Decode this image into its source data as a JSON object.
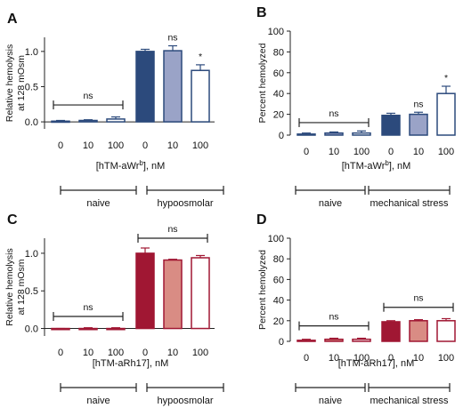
{
  "chart_data": [
    {
      "panel": "A",
      "type": "bar",
      "ylabel": "Relative hemolysis at 128 mOsm",
      "ylabel_lines": [
        "Relative hemolysis",
        "at 128 mOsm"
      ],
      "xlabel": "[hTM-aWr",
      "xlabel_sup": "b",
      "xlabel_tail": "], nM",
      "ylim": [
        -0.1,
        1.2
      ],
      "yticks": [
        0.0,
        0.5,
        1.0
      ],
      "ytick_labels": [
        "0.0",
        "0.5",
        "1.0"
      ],
      "categories": [
        "0",
        "10",
        "100",
        "0",
        "10",
        "100"
      ],
      "values": [
        0.01,
        0.02,
        0.04,
        1.0,
        1.01,
        0.73
      ],
      "errors": [
        0.01,
        0.01,
        0.03,
        0.03,
        0.07,
        0.08
      ],
      "fills": [
        "#2c4a7c",
        "#9aa3c7",
        "#ffffff",
        "#2c4a7c",
        "#9aa3c7",
        "#ffffff"
      ],
      "strokes": [
        "#2c4a7c",
        "#2c4a7c",
        "#2c4a7c",
        "#2c4a7c",
        "#2c4a7c",
        "#2c4a7c"
      ],
      "groups": [
        "naive",
        "hypoosmolar"
      ],
      "annotations": [
        {
          "type": "bracket",
          "from": 0,
          "to": 2,
          "y": 0.24,
          "label": "ns"
        },
        {
          "type": "over",
          "bar": 4,
          "label": "ns"
        },
        {
          "type": "over",
          "bar": 5,
          "label": "*"
        }
      ]
    },
    {
      "panel": "B",
      "type": "bar",
      "ylabel": "Percent hemolyzed",
      "ylabel_lines": [
        "Percent hemolyzed"
      ],
      "xlabel": "[hTM-aWr",
      "xlabel_sup": "b",
      "xlabel_tail": "], nM",
      "ylim": [
        0,
        100
      ],
      "yticks": [
        0,
        20,
        40,
        60,
        80,
        100
      ],
      "ytick_labels": [
        "0",
        "20",
        "40",
        "60",
        "80",
        "100"
      ],
      "categories": [
        "0",
        "10",
        "100",
        "0",
        "10",
        "100"
      ],
      "values": [
        1,
        2,
        2,
        19,
        20,
        40
      ],
      "errors": [
        1,
        1,
        2,
        2,
        2,
        7
      ],
      "fills": [
        "#2c4a7c",
        "#9aa3c7",
        "#ffffff",
        "#2c4a7c",
        "#9aa3c7",
        "#ffffff"
      ],
      "strokes": [
        "#2c4a7c",
        "#2c4a7c",
        "#2c4a7c",
        "#2c4a7c",
        "#2c4a7c",
        "#2c4a7c"
      ],
      "groups": [
        "naive",
        "mechanical stress"
      ],
      "annotations": [
        {
          "type": "bracket",
          "from": 0,
          "to": 2,
          "y": 12,
          "label": "ns"
        },
        {
          "type": "over",
          "bar": 4,
          "label": "ns"
        },
        {
          "type": "over",
          "bar": 5,
          "label": "*"
        }
      ]
    },
    {
      "panel": "C",
      "type": "bar",
      "ylabel": "Relative hemolysis at 128 mOsm",
      "ylabel_lines": [
        "Relative hemolysis",
        "at 128 mOsm"
      ],
      "xlabel": "[hTM-aRh17], nM",
      "xlabel_sup": "",
      "xlabel_tail": "",
      "ylim": [
        -0.1,
        1.2
      ],
      "yticks": [
        0.0,
        0.5,
        1.0
      ],
      "ytick_labels": [
        "0.0",
        "0.5",
        "1.0"
      ],
      "categories": [
        "0",
        "10",
        "100",
        "0",
        "10",
        "100"
      ],
      "values": [
        -0.01,
        0.0,
        0.0,
        1.0,
        0.91,
        0.94
      ],
      "errors": [
        0.01,
        0.01,
        0.01,
        0.07,
        0.01,
        0.03
      ],
      "fills": [
        "#a01733",
        "#d98c84",
        "#ffffff",
        "#a01733",
        "#d98c84",
        "#ffffff"
      ],
      "strokes": [
        "#a01733",
        "#a01733",
        "#a01733",
        "#a01733",
        "#a01733",
        "#a01733"
      ],
      "groups": [
        "naive",
        "hypoosmolar"
      ],
      "annotations": [
        {
          "type": "bracket",
          "from": 0,
          "to": 2,
          "y": 0.16,
          "label": "ns"
        },
        {
          "type": "bracket",
          "from": 3,
          "to": 5,
          "y": 1.2,
          "label": "ns"
        }
      ]
    },
    {
      "panel": "D",
      "type": "bar",
      "ylabel": "Percent hemolyzed",
      "ylabel_lines": [
        "Percent hemolyzed"
      ],
      "xlabel": "[hTM-aRh17], nM",
      "xlabel_sup": "",
      "xlabel_tail": "",
      "ylim": [
        0,
        100
      ],
      "yticks": [
        0,
        20,
        40,
        60,
        80,
        100
      ],
      "ytick_labels": [
        "0",
        "20",
        "40",
        "60",
        "80",
        "100"
      ],
      "categories": [
        "0",
        "10",
        "100",
        "0",
        "10",
        "100"
      ],
      "values": [
        1,
        2,
        2,
        19,
        20,
        20
      ],
      "errors": [
        1,
        1,
        1,
        1,
        1,
        2
      ],
      "fills": [
        "#a01733",
        "#d98c84",
        "#ffffff",
        "#a01733",
        "#d98c84",
        "#ffffff"
      ],
      "strokes": [
        "#a01733",
        "#a01733",
        "#a01733",
        "#a01733",
        "#a01733",
        "#a01733"
      ],
      "groups": [
        "naive",
        "mechanical stress"
      ],
      "annotations": [
        {
          "type": "bracket",
          "from": 0,
          "to": 2,
          "y": 15,
          "label": "ns"
        },
        {
          "type": "bracket",
          "from": 3,
          "to": 5,
          "y": 33,
          "label": "ns"
        }
      ]
    }
  ]
}
